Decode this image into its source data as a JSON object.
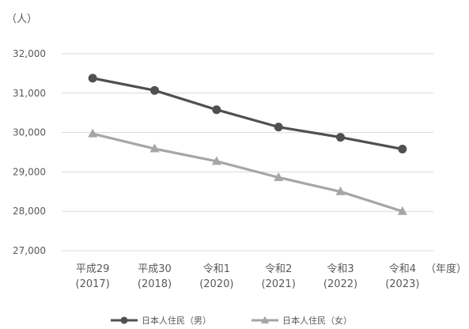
{
  "chart_data": {
    "type": "line",
    "y_unit_label": "（人）",
    "x_unit_label": "（年度）",
    "categories": [
      {
        "era": "平成29",
        "year": "(2017)"
      },
      {
        "era": "平成30",
        "year": "(2018)"
      },
      {
        "era": "令和1",
        "year": "(2020)"
      },
      {
        "era": "令和2",
        "year": "(2021)"
      },
      {
        "era": "令和3",
        "year": "(2022)"
      },
      {
        "era": "令和4",
        "year": "(2023)"
      }
    ],
    "ylim": [
      27000,
      32000
    ],
    "yticks": [
      27000,
      28000,
      29000,
      30000,
      31000,
      32000
    ],
    "ytick_labels": [
      "27,000",
      "28,000",
      "29,000",
      "30,000",
      "31,000",
      "32,000"
    ],
    "grid": true,
    "legend_position": "bottom",
    "series": [
      {
        "name": "日本人住民（男）",
        "values": [
          31380,
          31070,
          30580,
          30140,
          29880,
          29580
        ],
        "color": "#505050",
        "marker": "circle"
      },
      {
        "name": "日本人住民（女）",
        "values": [
          29970,
          29590,
          29270,
          28860,
          28500,
          28000
        ],
        "color": "#a6a6a6",
        "marker": "triangle"
      }
    ]
  }
}
